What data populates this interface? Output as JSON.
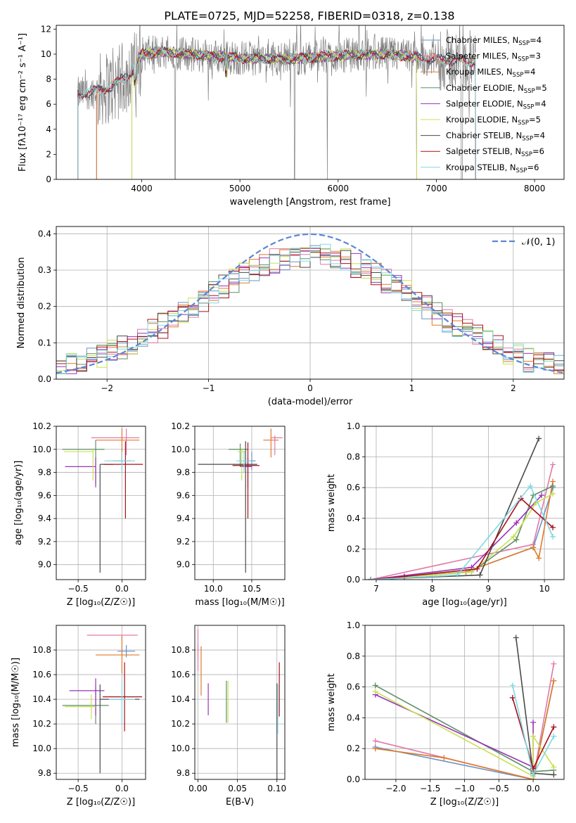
{
  "figure_title": "PLATE=0725, MJD=52258, FIBERID=0318, z=0.138",
  "colors": {
    "Chabrier MILES": "#6a93c6",
    "Salpeter MILES": "#e07aa8",
    "Kroupa MILES": "#df7a2a",
    "Chabrier ELODIE": "#5f8f66",
    "Salpeter ELODIE": "#9933b8",
    "Kroupa ELODIE": "#c9e051",
    "Chabrier STELIB": "#4a4a4a",
    "Salpeter STELIB": "#a8101c",
    "Kroupa STELIB": "#7fd9e3",
    "normal": "#5b87d3",
    "data_spectrum": "#808080"
  },
  "chart_data": [
    {
      "id": "spectrum",
      "type": "line",
      "xlabel": "wavelength [Angstrom, rest frame]",
      "ylabel": "Flux [fλ10⁻¹⁷ erg cm⁻² s⁻¹ A⁻¹]",
      "xlim": [
        3130,
        8300
      ],
      "ylim": [
        0,
        12.3
      ],
      "xticks": [
        4000,
        5000,
        6000,
        7000,
        8000
      ],
      "yticks": [
        0,
        2,
        4,
        6,
        8,
        10,
        12
      ],
      "grid": false,
      "legend_position": "top-right",
      "series": [
        {
          "name": "Chabrier MILES",
          "nssp": "4",
          "coverage": [
            3540,
            7400
          ]
        },
        {
          "name": "Salpeter MILES",
          "nssp": "3",
          "coverage": [
            3540,
            7400
          ]
        },
        {
          "name": "Kroupa MILES",
          "nssp": "4",
          "coverage": [
            3540,
            7400
          ]
        },
        {
          "name": "Chabrier ELODIE",
          "nssp": "5",
          "coverage": [
            3900,
            6800
          ]
        },
        {
          "name": "Salpeter ELODIE",
          "nssp": "4",
          "coverage": [
            3900,
            6800
          ]
        },
        {
          "name": "Kroupa ELODIE",
          "nssp": "5",
          "coverage": [
            3900,
            6800
          ]
        },
        {
          "name": "Chabrier STELIB",
          "nssp": "4",
          "coverage": [
            3350,
            7400
          ]
        },
        {
          "name": "Salpeter STELIB",
          "nssp": "6",
          "coverage": [
            3350,
            7400
          ]
        },
        {
          "name": "Kroupa STELIB",
          "nssp": "6",
          "coverage": [
            3350,
            7400
          ]
        }
      ],
      "continuum_points": [
        [
          3350,
          6.8
        ],
        [
          3500,
          7.0
        ],
        [
          3700,
          7.4
        ],
        [
          3900,
          8.6
        ],
        [
          4000,
          10.0
        ],
        [
          4200,
          10.2
        ],
        [
          4600,
          9.9
        ],
        [
          5000,
          9.7
        ],
        [
          5500,
          9.6
        ],
        [
          6000,
          9.9
        ],
        [
          6500,
          10.0
        ],
        [
          7000,
          9.6
        ],
        [
          7400,
          9.4
        ]
      ]
    },
    {
      "id": "residuals",
      "type": "histogram",
      "xlabel": "(data-model)/error",
      "ylabel": "Normed distribution",
      "xlim": [
        -2.5,
        2.5
      ],
      "ylim": [
        0,
        0.42
      ],
      "xticks": [
        -2,
        -1,
        0,
        1,
        2
      ],
      "yticks": [
        0.0,
        0.1,
        0.2,
        0.3,
        0.4
      ],
      "grid": true,
      "legend_position": "top-right",
      "reference_curve": {
        "label": "𝒩(0, 1)",
        "mean": 0,
        "sigma": 1
      },
      "bin_width": 0.1,
      "series_by_name_amplitude": 0.34,
      "series_by_name_sigma": 1.12
    },
    {
      "id": "age_vs_Z",
      "type": "errorbar",
      "xlabel": "Z [log₁₀(Z/Z☉)]",
      "ylabel": "age  [log₁₀(age/yr)]",
      "xlim": [
        -0.75,
        0.27
      ],
      "ylim": [
        8.87,
        10.2
      ],
      "xticks": [
        -0.5,
        0.0
      ],
      "yticks": [
        9.0,
        9.2,
        9.4,
        9.6,
        9.8,
        10.0,
        10.2
      ],
      "grid": true,
      "points": [
        {
          "series": "Chabrier MILES",
          "x": 0.0,
          "xerr": [
            0.1,
            0.1
          ],
          "y": 9.9,
          "yerr": [
            0.08,
            0.08
          ]
        },
        {
          "series": "Salpeter MILES",
          "x": 0.05,
          "xerr": [
            0.4,
            0.15
          ],
          "y": 10.1,
          "yerr": [
            0.15,
            0.08
          ]
        },
        {
          "series": "Kroupa MILES",
          "x": 0.0,
          "xerr": [
            0.3,
            0.2
          ],
          "y": 10.08,
          "yerr": [
            0.2,
            0.1
          ]
        },
        {
          "series": "Chabrier ELODIE",
          "x": -0.3,
          "xerr": [
            0.38,
            0.1
          ],
          "y": 10.0,
          "yerr": [
            0.3,
            0.08
          ]
        },
        {
          "series": "Salpeter ELODIE",
          "x": -0.3,
          "xerr": [
            0.35,
            0.0
          ],
          "y": 9.85,
          "yerr": [
            0.18,
            0.08
          ]
        },
        {
          "series": "Kroupa ELODIE",
          "x": -0.33,
          "xerr": [
            0.33,
            0.0
          ],
          "y": 9.98,
          "yerr": [
            0.25,
            0.03
          ]
        },
        {
          "series": "Chabrier STELIB",
          "x": -0.25,
          "xerr": [
            0.0,
            0.15
          ],
          "y": 9.87,
          "yerr": [
            0.94,
            0.0
          ]
        },
        {
          "series": "Salpeter STELIB",
          "x": 0.04,
          "xerr": [
            0.25,
            0.2
          ],
          "y": 9.87,
          "yerr": [
            0.47,
            0.2
          ]
        },
        {
          "series": "Kroupa STELIB",
          "x": 0.0,
          "xerr": [
            0.2,
            0.15
          ],
          "y": 9.9,
          "yerr": [
            0.1,
            0.08
          ]
        }
      ]
    },
    {
      "id": "age_vs_mass",
      "type": "errorbar",
      "xlabel": "mass [log₁₀(M/M☉)]",
      "ylabel": "",
      "xlim": [
        9.76,
        10.93
      ],
      "ylim": [
        8.87,
        10.2
      ],
      "xticks": [
        10.0,
        10.5
      ],
      "yticks": [
        9.0,
        9.2,
        9.4,
        9.6,
        9.8,
        10.0,
        10.2
      ],
      "grid": true,
      "points": [
        {
          "series": "Chabrier MILES",
          "x": 10.5,
          "xerr": [
            0.05,
            0.05
          ],
          "y": 9.9,
          "yerr": [
            0.08,
            0.08
          ]
        },
        {
          "series": "Salpeter MILES",
          "x": 10.8,
          "xerr": [
            0.05,
            0.1
          ],
          "y": 10.1,
          "yerr": [
            0.15,
            0.02
          ]
        },
        {
          "series": "Kroupa MILES",
          "x": 10.75,
          "xerr": [
            0.1,
            0.1
          ],
          "y": 10.08,
          "yerr": [
            0.15,
            0.1
          ]
        },
        {
          "series": "Chabrier ELODIE",
          "x": 10.35,
          "xerr": [
            0.15,
            0.1
          ],
          "y": 10.0,
          "yerr": [
            0.15,
            0.05
          ]
        },
        {
          "series": "Salpeter ELODIE",
          "x": 10.45,
          "xerr": [
            0.1,
            0.05
          ],
          "y": 9.85,
          "yerr": [
            0.18,
            0.08
          ]
        },
        {
          "series": "Kroupa ELODIE",
          "x": 10.37,
          "xerr": [
            0.05,
            0.05
          ],
          "y": 9.98,
          "yerr": [
            0.25,
            0.03
          ]
        },
        {
          "series": "Chabrier STELIB",
          "x": 10.42,
          "xerr": [
            0.62,
            0.15
          ],
          "y": 9.87,
          "yerr": [
            0.94,
            0.2
          ]
        },
        {
          "series": "Salpeter STELIB",
          "x": 10.45,
          "xerr": [
            0.2,
            0.15
          ],
          "y": 9.86,
          "yerr": [
            0.46,
            0.2
          ]
        },
        {
          "series": "Kroupa STELIB",
          "x": 10.4,
          "xerr": [
            0.1,
            0.1
          ],
          "y": 9.9,
          "yerr": [
            0.1,
            0.08
          ]
        }
      ]
    },
    {
      "id": "weight_vs_age",
      "type": "line",
      "xlabel": "age  [log₁₀(age/yr)]",
      "ylabel": "mass weight",
      "xlim": [
        6.8,
        10.35
      ],
      "ylim": [
        0,
        1.0
      ],
      "xticks": [
        7,
        8,
        9,
        10
      ],
      "yticks": [
        0.0,
        0.2,
        0.4,
        0.6,
        0.8,
        1.0
      ],
      "grid": true,
      "series": [
        {
          "name": "Chabrier MILES",
          "x": [
            6.9,
            8.6,
            9.8,
            10.15
          ],
          "y": [
            0.0,
            0.05,
            0.21,
            0.6
          ]
        },
        {
          "name": "Salpeter MILES",
          "x": [
            6.9,
            9.8,
            10.15
          ],
          "y": [
            0.0,
            0.23,
            0.75
          ]
        },
        {
          "name": "Kroupa MILES",
          "x": [
            6.9,
            8.6,
            9.8,
            9.9,
            10.15
          ],
          "y": [
            0.0,
            0.05,
            0.21,
            0.14,
            0.64
          ]
        },
        {
          "name": "Chabrier ELODIE",
          "x": [
            6.9,
            8.7,
            9.5,
            9.8,
            10.15
          ],
          "y": [
            0.0,
            0.05,
            0.26,
            0.55,
            0.61
          ]
        },
        {
          "name": "Salpeter ELODIE",
          "x": [
            6.9,
            8.7,
            9.5,
            9.95
          ],
          "y": [
            0.0,
            0.08,
            0.37,
            0.55
          ]
        },
        {
          "name": "Kroupa ELODIE",
          "x": [
            6.9,
            8.7,
            9.45,
            9.85,
            10.15
          ],
          "y": [
            0.0,
            0.05,
            0.28,
            0.5,
            0.56
          ]
        },
        {
          "name": "Chabrier STELIB",
          "x": [
            6.9,
            7.5,
            8.85,
            9.9
          ],
          "y": [
            0.0,
            0.01,
            0.03,
            0.92
          ]
        },
        {
          "name": "Salpeter STELIB",
          "x": [
            6.9,
            7.5,
            8.8,
            9.58,
            10.15
          ],
          "y": [
            0.0,
            0.02,
            0.07,
            0.53,
            0.34
          ]
        },
        {
          "name": "Kroupa STELIB",
          "x": [
            6.9,
            8.45,
            9.75,
            10.15
          ],
          "y": [
            0.0,
            0.03,
            0.61,
            0.28
          ]
        }
      ]
    },
    {
      "id": "mass_vs_Z",
      "type": "errorbar",
      "xlabel": "Z [log₁₀(Z/Z☉)]",
      "ylabel": "mass [log₁₀(M/M☉)]",
      "xlim": [
        -0.75,
        0.27
      ],
      "ylim": [
        9.75,
        11.0
      ],
      "xticks": [
        -0.5,
        0.0
      ],
      "yticks": [
        9.8,
        10.0,
        10.2,
        10.4,
        10.6,
        10.8
      ],
      "grid": true,
      "points": [
        {
          "series": "Chabrier MILES",
          "x": 0.05,
          "xerr": [
            0.1,
            0.1
          ],
          "y": 10.79,
          "yerr": [
            0.05,
            0.05
          ]
        },
        {
          "series": "Salpeter MILES",
          "x": 0.0,
          "xerr": [
            0.4,
            0.18
          ],
          "y": 10.92,
          "yerr": [
            0.05,
            0.0
          ]
        },
        {
          "series": "Kroupa MILES",
          "x": 0.0,
          "xerr": [
            0.3,
            0.2
          ],
          "y": 10.76,
          "yerr": [
            0.15,
            0.15
          ]
        },
        {
          "series": "Chabrier ELODIE",
          "x": -0.3,
          "xerr": [
            0.38,
            0.15
          ],
          "y": 10.35,
          "yerr": [
            0.15,
            0.15
          ]
        },
        {
          "series": "Salpeter ELODIE",
          "x": -0.3,
          "xerr": [
            0.3,
            0.1
          ],
          "y": 10.47,
          "yerr": [
            0.2,
            0.1
          ]
        },
        {
          "series": "Kroupa ELODIE",
          "x": -0.35,
          "xerr": [
            0.3,
            0.05
          ],
          "y": 10.34,
          "yerr": [
            0.1,
            0.1
          ]
        },
        {
          "series": "Chabrier STELIB",
          "x": -0.25,
          "xerr": [
            0.0,
            0.45
          ],
          "y": 10.4,
          "yerr": [
            0.6,
            0.12
          ]
        },
        {
          "series": "Salpeter STELIB",
          "x": 0.03,
          "xerr": [
            0.25,
            0.2
          ],
          "y": 10.42,
          "yerr": [
            0.28,
            0.28
          ]
        },
        {
          "series": "Kroupa STELIB",
          "x": 0.0,
          "xerr": [
            0.15,
            0.15
          ],
          "y": 10.4,
          "yerr": [
            0.2,
            0.15
          ]
        }
      ]
    },
    {
      "id": "mass_vs_ebv",
      "type": "errorbar",
      "xlabel": "E(B-V)",
      "ylabel": "",
      "xlim": [
        -0.004,
        0.11
      ],
      "ylim": [
        9.75,
        11.0
      ],
      "xticks": [
        0.0,
        0.05,
        0.1
      ],
      "yticks": [
        9.8,
        10.0,
        10.2,
        10.4,
        10.6,
        10.8
      ],
      "grid": true,
      "points": [
        {
          "series": "Chabrier MILES",
          "x": 0.0,
          "xerr": [
            0,
            0
          ],
          "y": 10.79,
          "yerr": [
            0.05,
            0.05
          ]
        },
        {
          "series": "Salpeter MILES",
          "x": 0.0,
          "xerr": [
            0,
            0
          ],
          "y": 10.8,
          "yerr": [
            0.17,
            0.17
          ]
        },
        {
          "series": "Kroupa MILES",
          "x": 0.004,
          "xerr": [
            0,
            0
          ],
          "y": 10.63,
          "yerr": [
            0.2,
            0.2
          ]
        },
        {
          "series": "Chabrier ELODIE",
          "x": 0.036,
          "xerr": [
            0,
            0
          ],
          "y": 10.38,
          "yerr": [
            0.17,
            0.17
          ]
        },
        {
          "series": "Salpeter ELODIE",
          "x": 0.013,
          "xerr": [
            0,
            0
          ],
          "y": 10.4,
          "yerr": [
            0.13,
            0.13
          ]
        },
        {
          "series": "Kroupa ELODIE",
          "x": 0.038,
          "xerr": [
            0,
            0
          ],
          "y": 10.38,
          "yerr": [
            0.17,
            0.17
          ]
        },
        {
          "series": "Chabrier STELIB",
          "x": 0.1,
          "xerr": [
            0,
            0
          ],
          "y": 10.25,
          "yerr": [
            0.5,
            0.28
          ]
        },
        {
          "series": "Salpeter STELIB",
          "x": 0.103,
          "xerr": [
            0,
            0
          ],
          "y": 10.48,
          "yerr": [
            0.22,
            0.22
          ]
        },
        {
          "series": "Kroupa STELIB",
          "x": 0.101,
          "xerr": [
            0,
            0
          ],
          "y": 10.32,
          "yerr": [
            0.2,
            0.2
          ]
        }
      ]
    },
    {
      "id": "weight_vs_Z",
      "type": "line",
      "xlabel": "Z [log₁₀(Z/Z☉)]",
      "ylabel": "mass weight",
      "xlim": [
        -2.45,
        0.45
      ],
      "ylim": [
        0,
        1.0
      ],
      "xticks": [
        -2.0,
        -1.5,
        -1.0,
        -0.5,
        0.0
      ],
      "yticks": [
        0.0,
        0.2,
        0.4,
        0.6,
        0.8,
        1.0
      ],
      "grid": true,
      "series": [
        {
          "name": "Chabrier MILES",
          "x": [
            -2.3,
            0.0,
            0.3
          ],
          "y": [
            0.21,
            0.0,
            0.64
          ]
        },
        {
          "name": "Salpeter MILES",
          "x": [
            -2.3,
            0.0,
            0.3
          ],
          "y": [
            0.25,
            0.0,
            0.75
          ]
        },
        {
          "name": "Kroupa MILES",
          "x": [
            -2.3,
            -1.3,
            0.0,
            0.3
          ],
          "y": [
            0.2,
            0.14,
            0.0,
            0.64
          ]
        },
        {
          "name": "Chabrier ELODIE",
          "x": [
            -2.3,
            0.0,
            0.3
          ],
          "y": [
            0.61,
            0.05,
            0.06
          ]
        },
        {
          "name": "Salpeter ELODIE",
          "x": [
            -2.3,
            0.0,
            0.0
          ],
          "y": [
            0.55,
            0.08,
            0.37
          ]
        },
        {
          "name": "Kroupa ELODIE",
          "x": [
            -2.3,
            0.0,
            0.0,
            0.3
          ],
          "y": [
            0.57,
            0.02,
            0.28,
            0.08
          ]
        },
        {
          "name": "Chabrier STELIB",
          "x": [
            -0.25,
            0.0,
            0.3
          ],
          "y": [
            0.92,
            0.04,
            0.03
          ]
        },
        {
          "name": "Salpeter STELIB",
          "x": [
            -0.3,
            0.0,
            0.3
          ],
          "y": [
            0.53,
            0.07,
            0.34
          ]
        },
        {
          "name": "Kroupa STELIB",
          "x": [
            -0.3,
            0.0,
            0.3
          ],
          "y": [
            0.61,
            0.03,
            0.28
          ]
        }
      ]
    }
  ]
}
